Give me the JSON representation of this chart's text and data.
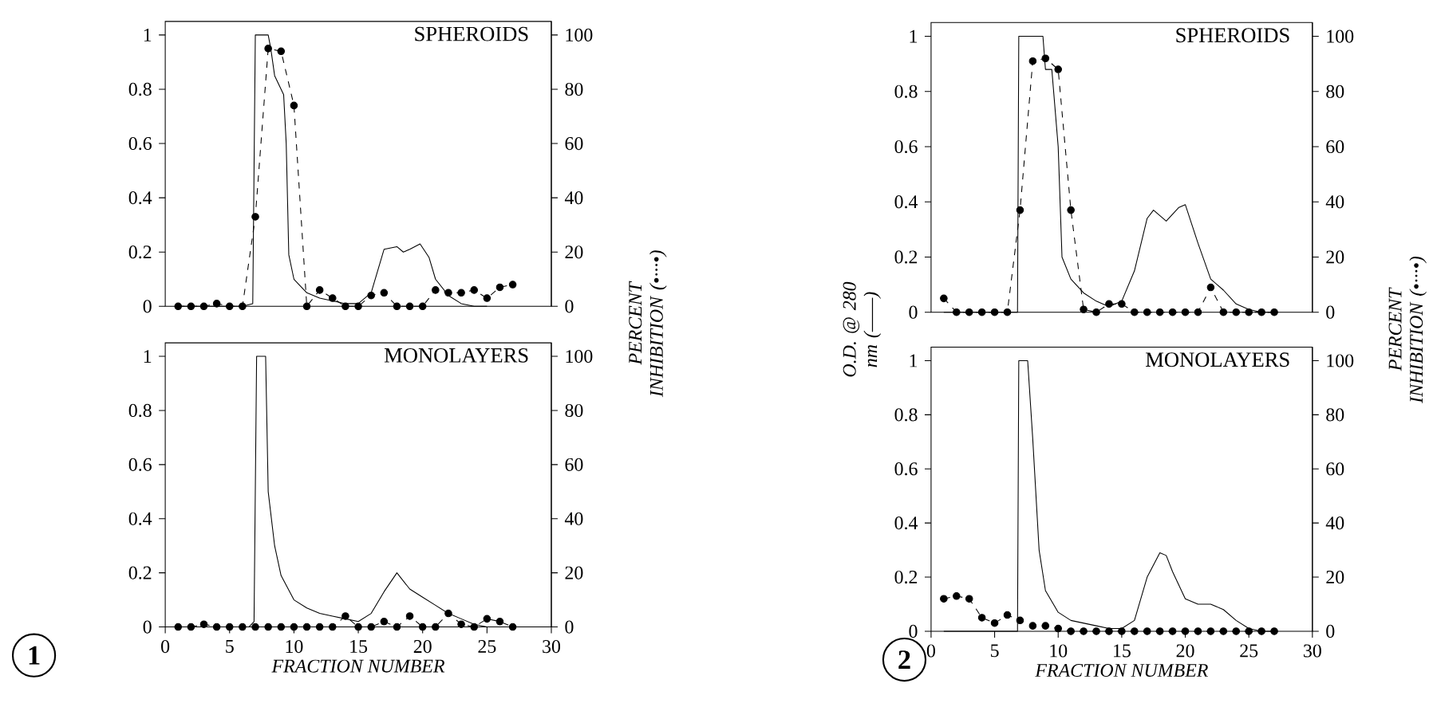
{
  "chart_data": [
    {
      "type": "line",
      "title": "SPHEROIDS",
      "y2label": "PERCENT INHIBITION (•···•)",
      "xlim": [
        0,
        30
      ],
      "ylim": [
        0,
        1.05
      ],
      "yticks": [
        0,
        0.2,
        0.4,
        0.6,
        0.8,
        1
      ],
      "y2lim": [
        0,
        105
      ],
      "y2ticks": [
        0,
        20,
        40,
        60,
        80,
        100
      ],
      "tick_labels": "y",
      "series": [
        {
          "color": "#000000",
          "marker": "none",
          "line_style": "solid",
          "x": [
            1,
            6,
            6.8,
            7,
            8,
            8.2,
            8.5,
            8.7,
            9,
            9.2,
            9.4,
            9.6,
            10,
            11,
            12,
            13,
            14,
            15,
            16,
            17,
            18,
            18.5,
            19,
            19.8,
            20.5,
            21,
            22,
            23,
            24,
            25
          ],
          "values": [
            0,
            0,
            0.01,
            1,
            1,
            0.95,
            0.85,
            0.83,
            0.8,
            0.78,
            0.6,
            0.19,
            0.1,
            0.05,
            0.03,
            0.02,
            0.01,
            0.01,
            0.05,
            0.21,
            0.22,
            0.2,
            0.21,
            0.23,
            0.18,
            0.1,
            0.04,
            0.01,
            0,
            0
          ]
        },
        {
          "color": "#000000",
          "marker": "circle",
          "line_style": "dashed",
          "axis": "y2",
          "x": [
            1,
            2,
            3,
            4,
            5,
            6,
            7,
            8,
            9,
            10,
            11,
            12,
            13,
            14,
            15,
            16,
            17,
            18,
            19,
            20,
            21,
            22,
            23,
            24,
            25,
            26,
            27
          ],
          "values": [
            0,
            0,
            0,
            1,
            0,
            0,
            33,
            95,
            94,
            74,
            0,
            6,
            3,
            0,
            0,
            4,
            5,
            0,
            0,
            0,
            6,
            5,
            5,
            6,
            3,
            7,
            8
          ]
        }
      ]
    },
    {
      "type": "line",
      "title": "MONOLAYERS",
      "xlabel": "FRACTION NUMBER",
      "annotations": [
        "1"
      ],
      "xlim": [
        0,
        30
      ],
      "xticks": [
        0,
        5,
        10,
        15,
        20,
        25,
        30
      ],
      "ylim": [
        0,
        1.05
      ],
      "yticks": [
        0,
        0.2,
        0.4,
        0.6,
        0.8,
        1
      ],
      "y2lim": [
        0,
        105
      ],
      "y2ticks": [
        0,
        20,
        40,
        60,
        80,
        100
      ],
      "series": [
        {
          "color": "#000000",
          "marker": "none",
          "line_style": "solid",
          "x": [
            1,
            6.5,
            6.9,
            7.1,
            7.8,
            8,
            8.5,
            9,
            10,
            11,
            12,
            13,
            14,
            15,
            16,
            17,
            18,
            19,
            20,
            21,
            22,
            23,
            24,
            25,
            27
          ],
          "values": [
            0,
            0,
            0.02,
            1,
            1,
            0.5,
            0.3,
            0.19,
            0.1,
            0.07,
            0.05,
            0.04,
            0.03,
            0.02,
            0.05,
            0.13,
            0.2,
            0.14,
            0.11,
            0.08,
            0.05,
            0.03,
            0.01,
            0,
            0
          ]
        },
        {
          "color": "#000000",
          "marker": "circle",
          "line_style": "dashed",
          "axis": "y2",
          "x": [
            1,
            2,
            3,
            4,
            5,
            6,
            7,
            8,
            9,
            10,
            11,
            12,
            13,
            14,
            15,
            16,
            17,
            18,
            19,
            20,
            21,
            22,
            23,
            24,
            25,
            26,
            27
          ],
          "values": [
            0,
            0,
            1,
            0,
            0,
            0,
            0,
            0,
            0,
            0,
            0,
            0,
            0,
            4,
            0,
            0,
            2,
            0,
            4,
            0,
            0,
            5,
            1,
            0,
            3,
            2,
            0
          ]
        }
      ]
    },
    {
      "type": "line",
      "title": "SPHEROIDS",
      "ylabel": "O.D. @ 280 nm (——)",
      "y2label": "PERCENT INHIBITION (•···•)",
      "xlim": [
        0,
        30
      ],
      "ylim": [
        0,
        1.05
      ],
      "yticks": [
        0,
        0.2,
        0.4,
        0.6,
        0.8,
        1
      ],
      "y2lim": [
        0,
        105
      ],
      "y2ticks": [
        0,
        20,
        40,
        60,
        80,
        100
      ],
      "tick_labels": "y",
      "series": [
        {
          "color": "#000000",
          "marker": "none",
          "line_style": "solid",
          "x": [
            1,
            6.8,
            6.9,
            8.8,
            9,
            9.5,
            10,
            10.3,
            11,
            12,
            13,
            14,
            15,
            16,
            17,
            17.5,
            18.5,
            19.5,
            20,
            21,
            22,
            23,
            24,
            25,
            26,
            27
          ],
          "values": [
            0,
            0,
            1,
            1,
            0.88,
            0.88,
            0.6,
            0.2,
            0.12,
            0.07,
            0.04,
            0.02,
            0.04,
            0.15,
            0.34,
            0.37,
            0.33,
            0.38,
            0.39,
            0.25,
            0.12,
            0.08,
            0.03,
            0.01,
            0,
            0
          ]
        },
        {
          "color": "#000000",
          "marker": "circle",
          "line_style": "dashed",
          "axis": "y2",
          "x": [
            1,
            2,
            3,
            4,
            5,
            6,
            7,
            8,
            9,
            10,
            11,
            12,
            13,
            14,
            15,
            16,
            17,
            18,
            19,
            20,
            21,
            22,
            23,
            24,
            25,
            26,
            27
          ],
          "values": [
            5,
            0,
            0,
            0,
            0,
            0,
            37,
            91,
            92,
            88,
            37,
            1,
            0,
            3,
            3,
            0,
            0,
            0,
            0,
            0,
            0,
            9,
            0,
            0,
            0,
            0,
            0
          ]
        }
      ]
    },
    {
      "type": "line",
      "title": "MONOLAYERS",
      "xlabel": "FRACTION NUMBER",
      "annotations": [
        "2"
      ],
      "xlim": [
        0,
        30
      ],
      "xticks": [
        0,
        5,
        10,
        15,
        20,
        25,
        30
      ],
      "ylim": [
        0,
        1.05
      ],
      "yticks": [
        0,
        0.2,
        0.4,
        0.6,
        0.8,
        1
      ],
      "y2lim": [
        0,
        105
      ],
      "y2ticks": [
        0,
        20,
        40,
        60,
        80,
        100
      ],
      "series": [
        {
          "color": "#000000",
          "marker": "none",
          "line_style": "solid",
          "x": [
            1,
            6.8,
            6.9,
            7.6,
            8,
            8.5,
            9,
            10,
            11,
            12,
            13,
            14,
            15,
            16,
            17,
            18,
            18.5,
            19,
            20,
            21,
            22,
            23,
            24,
            25,
            26,
            27
          ],
          "values": [
            0,
            0,
            1,
            1,
            0.71,
            0.3,
            0.15,
            0.07,
            0.04,
            0.03,
            0.02,
            0.01,
            0.01,
            0.04,
            0.2,
            0.29,
            0.28,
            0.22,
            0.12,
            0.1,
            0.1,
            0.08,
            0.04,
            0.01,
            0,
            0
          ]
        },
        {
          "color": "#000000",
          "marker": "circle",
          "line_style": "dashed",
          "axis": "y2",
          "x": [
            1,
            2,
            3,
            4,
            5,
            6,
            7,
            8,
            9,
            10,
            11,
            12,
            13,
            14,
            15,
            16,
            17,
            18,
            19,
            20,
            21,
            22,
            23,
            24,
            25,
            26,
            27
          ],
          "values": [
            12,
            13,
            12,
            5,
            3,
            6,
            4,
            2,
            2,
            1,
            0,
            0,
            0,
            0,
            0,
            0,
            0,
            0,
            0,
            0,
            0,
            0,
            0,
            0,
            0,
            0,
            0
          ]
        }
      ]
    }
  ]
}
